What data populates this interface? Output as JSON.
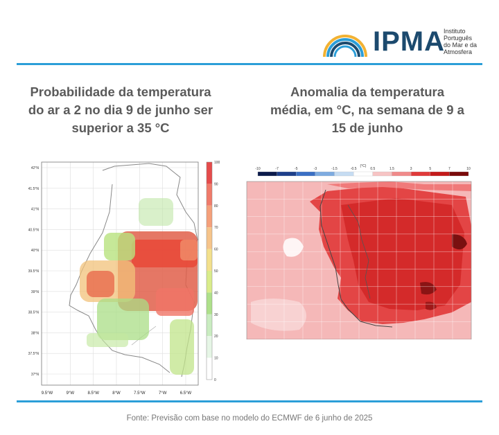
{
  "header": {
    "logo_text": "IPMA",
    "logo_subtitle": [
      "Instituto",
      "Português",
      "do Mar e da",
      "Atmosfera"
    ]
  },
  "left_panel": {
    "title_lines": [
      "Probabilidade da temperatura",
      "do ar a 2 no dia 9 de junho ser",
      "superior a 35 °C"
    ],
    "lat_labels": [
      "42°N",
      "41.5°N",
      "41°N",
      "40.5°N",
      "40°N",
      "39.5°N",
      "39°N",
      "38.5°N",
      "38°N",
      "37.5°N",
      "37°N"
    ],
    "lon_labels": [
      "9.5°W",
      "9°W",
      "8.5°W",
      "8°W",
      "7.5°W",
      "7°W",
      "6.5°W"
    ],
    "colorbar_ticks": [
      "100",
      "90",
      "80",
      "70",
      "60",
      "50",
      "40",
      "30",
      "20",
      "10",
      "0"
    ],
    "colorbar_colors": [
      "#e54b4b",
      "#f07a6a",
      "#f5a07a",
      "#f6c48a",
      "#f3e08c",
      "#d9ec8a",
      "#aee08a",
      "#c9ecc0",
      "#e6f6e6",
      "#ffffff"
    ]
  },
  "right_panel": {
    "title_lines": [
      "Anomalia da temperatura",
      "média, em °C, na semana de 9 a",
      "15 de junho"
    ],
    "scale_unit": "(°C)",
    "scale_ticks": [
      "-10",
      "-7",
      "-5",
      "-3",
      "-1.5",
      "-0.5",
      "0.5",
      "1.5",
      "3",
      "5",
      "7",
      "10"
    ],
    "scale_colors": [
      "#0b1a4a",
      "#1d3f8a",
      "#3a6fc4",
      "#7eabe0",
      "#c6dcf2",
      "#ffffff",
      "#f7c4c4",
      "#f08a8a",
      "#e03a3a",
      "#c41a1a",
      "#7a0a0a"
    ]
  },
  "footer": {
    "text": "Fonte: Previsão com base no modelo do ECMWF de 6 junho de 2025"
  }
}
